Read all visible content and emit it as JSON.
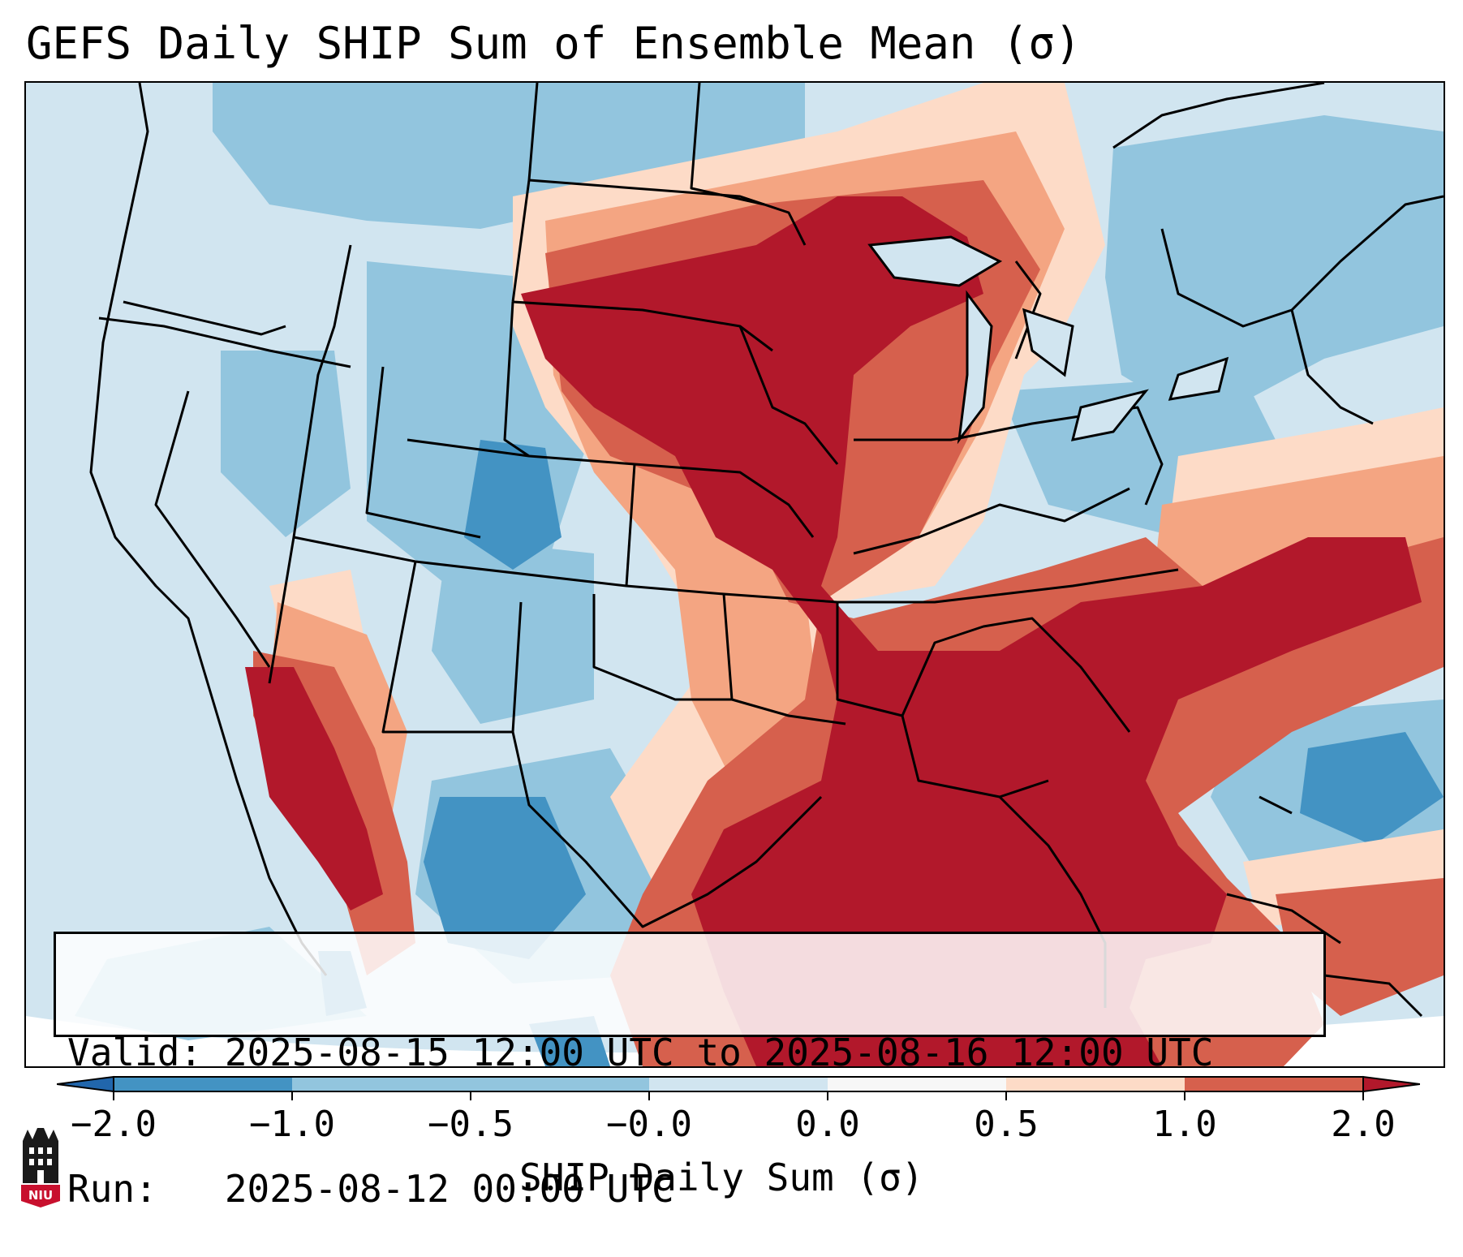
{
  "title": "GEFS Daily SHIP Sum of Ensemble Mean (σ)",
  "map": {
    "region": "Contiguous United States",
    "field": "SHIP daily sum anomaly",
    "features": [
      "state-borders",
      "coastlines",
      "lakes"
    ],
    "colors": {
      "ocean_background": "#d1e5f0",
      "lt_minus_2": "#2166ac",
      "minus_2_to_minus_1": "#4393c3",
      "minus_1_to_minus_0_5": "#92c5de",
      "minus_0_5_to_0": "#d1e5f0",
      "zero": "#f7f7f7",
      "0_to_0_5": "#fddbc7",
      "0_5_to_1": "#f4a582",
      "1_to_2": "#d6604d",
      "gt_2": "#b2182b"
    }
  },
  "info": {
    "valid_line": "Valid: 2025-08-15 12:00 UTC to 2025-08-16 12:00 UTC",
    "run_line": "Run:   2025-08-12 00:00 UTC"
  },
  "colorbar": {
    "label": "SHIP Daily Sum (σ)",
    "ticks": [
      "−2.0",
      "−1.0",
      "−0.5",
      "−0.0",
      "0.0",
      "0.5",
      "1.0",
      "2.0"
    ],
    "segments": [
      "#4393c3",
      "#92c5de",
      "#92c5de",
      "#d1e5f0",
      "#f7f7f7",
      "#fddbc7",
      "#d6604d",
      "#b2182b"
    ],
    "extend_low_color": "#2166ac",
    "extend_high_color": "#b2182b"
  },
  "logo": {
    "text": "NIU",
    "color": "#c8102e"
  }
}
